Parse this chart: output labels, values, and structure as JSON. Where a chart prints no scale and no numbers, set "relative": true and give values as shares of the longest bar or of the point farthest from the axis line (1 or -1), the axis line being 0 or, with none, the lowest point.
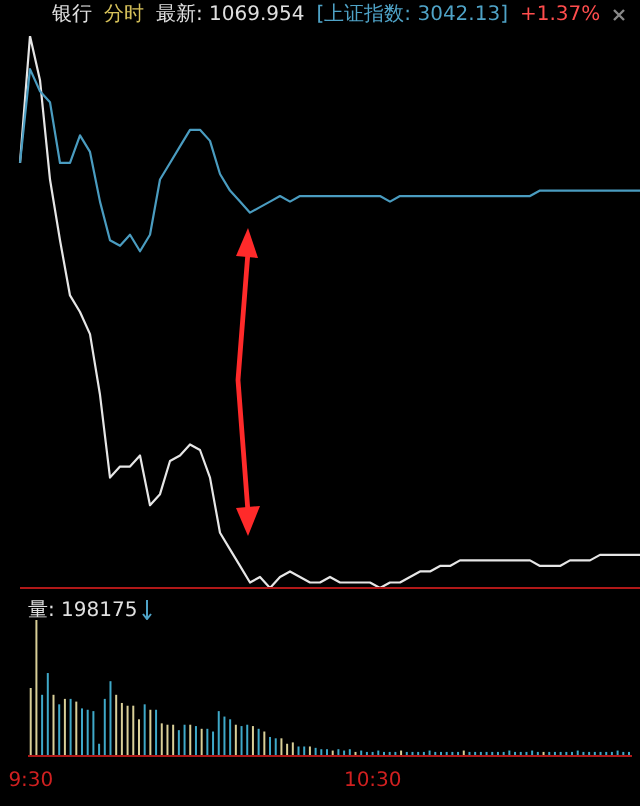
{
  "chart_data": [
    {
      "type": "line",
      "title": "银行",
      "subtitle": "分时",
      "annotations": [
        "最新: 1069.954",
        "[上证指数: 3042.13]",
        "+1.37%"
      ],
      "relative": true,
      "tick_labels": false,
      "marker": "none",
      "categories": [
        null,
        null,
        null,
        null,
        null,
        null,
        null,
        null,
        null,
        null,
        null,
        null,
        null,
        null,
        null,
        null,
        null,
        null,
        null,
        null,
        null,
        null,
        null,
        null,
        null,
        null,
        null,
        null,
        null,
        null,
        null,
        null,
        null,
        null,
        null,
        null,
        null,
        null,
        null,
        null,
        null,
        null,
        null,
        null,
        null,
        null,
        null,
        null,
        null,
        null,
        null,
        null,
        null,
        null,
        null,
        null,
        null,
        null,
        null,
        null,
        null,
        null,
        null
      ],
      "series": [
        {
          "color": "#e6e6e6",
          "values": [
            0.77,
            1.0,
            0.92,
            0.74,
            0.63,
            0.53,
            0.5,
            0.46,
            0.35,
            0.2,
            0.22,
            0.22,
            0.24,
            0.15,
            0.17,
            0.23,
            0.24,
            0.26,
            0.25,
            0.2,
            0.1,
            0.07,
            0.04,
            0.01,
            0.02,
            0.0,
            0.02,
            0.03,
            0.02,
            0.01,
            0.01,
            0.02,
            0.01,
            0.01,
            0.01,
            0.01,
            0.0,
            0.01,
            0.01,
            0.02,
            0.03,
            0.03,
            0.04,
            0.04,
            0.05,
            0.05,
            0.05,
            0.05,
            0.05,
            0.05,
            0.05,
            0.05,
            0.04,
            0.04,
            0.04,
            0.05,
            0.05,
            0.05,
            0.06,
            0.06,
            0.06,
            0.06,
            0.06
          ]
        },
        {
          "color": "#4a9cc0",
          "values": [
            0.77,
            0.94,
            0.9,
            0.88,
            0.77,
            0.77,
            0.82,
            0.79,
            0.7,
            0.63,
            0.62,
            0.64,
            0.61,
            0.64,
            0.74,
            0.77,
            0.8,
            0.83,
            0.83,
            0.81,
            0.75,
            0.72,
            0.7,
            0.68,
            0.69,
            0.7,
            0.71,
            0.7,
            0.71,
            0.71,
            0.71,
            0.71,
            0.71,
            0.71,
            0.71,
            0.71,
            0.71,
            0.7,
            0.71,
            0.71,
            0.71,
            0.71,
            0.71,
            0.71,
            0.71,
            0.71,
            0.71,
            0.71,
            0.71,
            0.71,
            0.71,
            0.71,
            0.72,
            0.72,
            0.72,
            0.72,
            0.72,
            0.72,
            0.72,
            0.72,
            0.72,
            0.72,
            0.72
          ]
        }
      ]
    },
    {
      "type": "bar",
      "title": "量: 198175",
      "relative": true,
      "tick_labels": "x",
      "categories": [
        "9:30",
        null,
        null,
        null,
        null,
        null,
        null,
        null,
        null,
        null,
        null,
        null,
        null,
        null,
        null,
        null,
        null,
        null,
        null,
        null,
        null,
        null,
        null,
        null,
        null,
        null,
        null,
        null,
        null,
        null,
        null,
        null,
        null,
        null,
        null,
        null,
        null,
        null,
        null,
        null,
        null,
        null,
        null,
        null,
        null,
        null,
        null,
        null,
        null,
        null,
        null,
        null,
        null,
        null,
        null,
        null,
        null,
        null,
        null,
        null,
        "10:30",
        null,
        null,
        null,
        null,
        null,
        null,
        null,
        null,
        null,
        null,
        null,
        null,
        null,
        null,
        null,
        null,
        null,
        null,
        null,
        null,
        null,
        null,
        null,
        null,
        null,
        null,
        null,
        null,
        null,
        null,
        null,
        null,
        null,
        null,
        null,
        null,
        null,
        null,
        null,
        null,
        null,
        null,
        null,
        null,
        null
      ],
      "values": [
        0.5,
        1.0,
        0.45,
        0.61,
        0.45,
        0.38,
        0.42,
        0.42,
        0.4,
        0.35,
        0.34,
        0.33,
        0.09,
        0.42,
        0.55,
        0.45,
        0.39,
        0.37,
        0.37,
        0.27,
        0.38,
        0.34,
        0.34,
        0.24,
        0.23,
        0.23,
        0.19,
        0.23,
        0.23,
        0.22,
        0.2,
        0.2,
        0.18,
        0.33,
        0.29,
        0.27,
        0.23,
        0.22,
        0.23,
        0.22,
        0.2,
        0.18,
        0.14,
        0.13,
        0.13,
        0.09,
        0.1,
        0.07,
        0.07,
        0.07,
        0.06,
        0.05,
        0.05,
        0.04,
        0.05,
        0.04,
        0.05,
        0.03,
        0.04,
        0.03,
        0.03,
        0.04,
        0.03,
        0.03,
        0.03,
        0.04,
        0.03,
        0.03,
        0.03,
        0.03,
        0.04,
        0.03,
        0.03,
        0.03,
        0.03,
        0.03,
        0.04,
        0.03,
        0.03,
        0.03,
        0.03,
        0.03,
        0.03,
        0.03,
        0.04,
        0.03,
        0.03,
        0.03,
        0.04,
        0.03,
        0.03,
        0.03,
        0.03,
        0.03,
        0.03,
        0.03,
        0.04,
        0.03,
        0.03,
        0.03,
        0.03,
        0.03,
        0.03,
        0.04,
        0.03,
        0.03
      ],
      "colors": [
        "#d9cf98",
        "#d9cf98",
        "#3fa9c9",
        "#3fa9c9",
        "#d9cf98",
        "#3fa9c9",
        "#d9cf98",
        "#3fa9c9",
        "#d9cf98",
        "#3fa9c9",
        "#3fa9c9",
        "#3fa9c9",
        "#3fa9c9",
        "#3fa9c9",
        "#3fa9c9",
        "#d9cf98",
        "#d9cf98",
        "#d9cf98",
        "#d9cf98",
        "#d9cf98",
        "#3fa9c9",
        "#d9cf98",
        "#3fa9c9",
        "#d9cf98",
        "#d9cf98",
        "#d9cf98",
        "#3fa9c9",
        "#3fa9c9",
        "#d9cf98",
        "#3fa9c9",
        "#d9cf98",
        "#3fa9c9",
        "#3fa9c9",
        "#3fa9c9",
        "#3fa9c9",
        "#3fa9c9",
        "#d9cf98",
        "#3fa9c9",
        "#3fa9c9",
        "#d9cf98",
        "#3fa9c9",
        "#d9cf98",
        "#3fa9c9",
        "#3fa9c9",
        "#d9cf98",
        "#d9cf98",
        "#d9cf98",
        "#3fa9c9",
        "#3fa9c9",
        "#d9cf98",
        "#3fa9c9",
        "#3fa9c9",
        "#3fa9c9",
        "#d9cf98",
        "#3fa9c9",
        "#3fa9c9",
        "#3fa9c9",
        "#d9cf98",
        "#3fa9c9",
        "#3fa9c9",
        "#3fa9c9",
        "#3fa9c9",
        "#3fa9c9",
        "#3fa9c9",
        "#3fa9c9",
        "#d9cf98",
        "#3fa9c9",
        "#3fa9c9",
        "#3fa9c9",
        "#3fa9c9",
        "#3fa9c9",
        "#3fa9c9",
        "#3fa9c9",
        "#3fa9c9",
        "#3fa9c9",
        "#3fa9c9",
        "#d9cf98",
        "#3fa9c9",
        "#3fa9c9",
        "#3fa9c9",
        "#3fa9c9",
        "#3fa9c9",
        "#3fa9c9",
        "#3fa9c9",
        "#3fa9c9",
        "#3fa9c9",
        "#3fa9c9",
        "#3fa9c9",
        "#3fa9c9",
        "#3fa9c9",
        "#d9cf98",
        "#3fa9c9",
        "#3fa9c9",
        "#3fa9c9",
        "#3fa9c9",
        "#3fa9c9",
        "#3fa9c9",
        "#3fa9c9",
        "#3fa9c9",
        "#3fa9c9",
        "#3fa9c9",
        "#3fa9c9",
        "#3fa9c9",
        "#3fa9c9",
        "#3fa9c9",
        "#3fa9c9"
      ]
    }
  ]
}
